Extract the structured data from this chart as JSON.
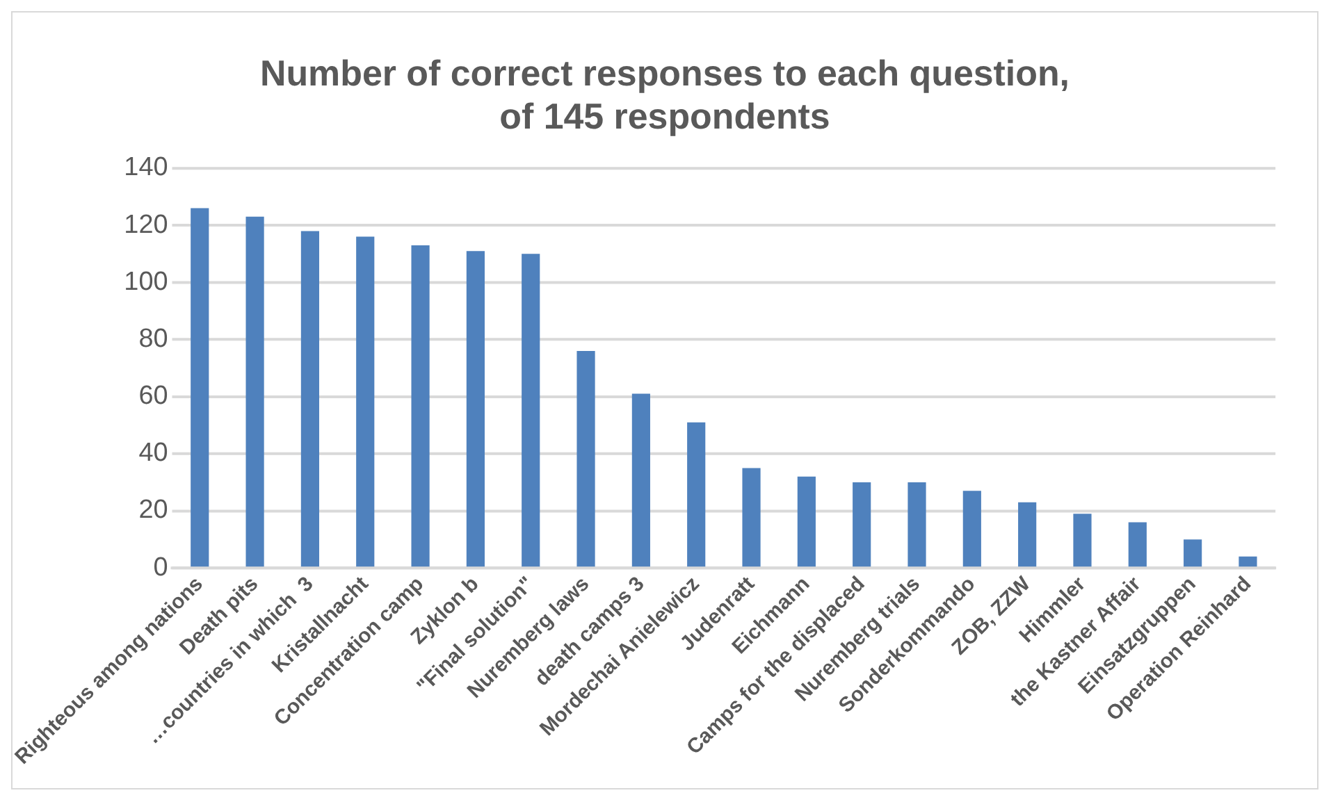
{
  "chart_data": {
    "type": "bar",
    "title": "Number of correct responses to each question, of 145 respondents",
    "categories": [
      "Righteous among nations",
      "Death pits",
      "…countries in which  3",
      "Kristallnacht",
      "Concentration camp",
      "Zyklon b",
      "\"Final solution\"",
      "Nuremberg laws",
      "death camps 3",
      "Mordechai Anielewicz",
      "Judenratt",
      "Eichmann",
      "Camps for the displaced",
      "Nuremberg trials",
      "Sonderkommando",
      "ZOB, ZZW",
      "Himmler",
      "the Kastner Affair",
      "Einsatzgruppen",
      "Operation Reinhard"
    ],
    "values": [
      126,
      123,
      118,
      116,
      113,
      111,
      110,
      76,
      61,
      51,
      35,
      32,
      30,
      30,
      27,
      23,
      19,
      16,
      10,
      4
    ],
    "color": "#4f81bd",
    "ylim": [
      0,
      140
    ],
    "yticks": [
      0,
      20,
      40,
      60,
      80,
      100,
      120,
      140
    ],
    "grid": "y",
    "legend": false
  }
}
